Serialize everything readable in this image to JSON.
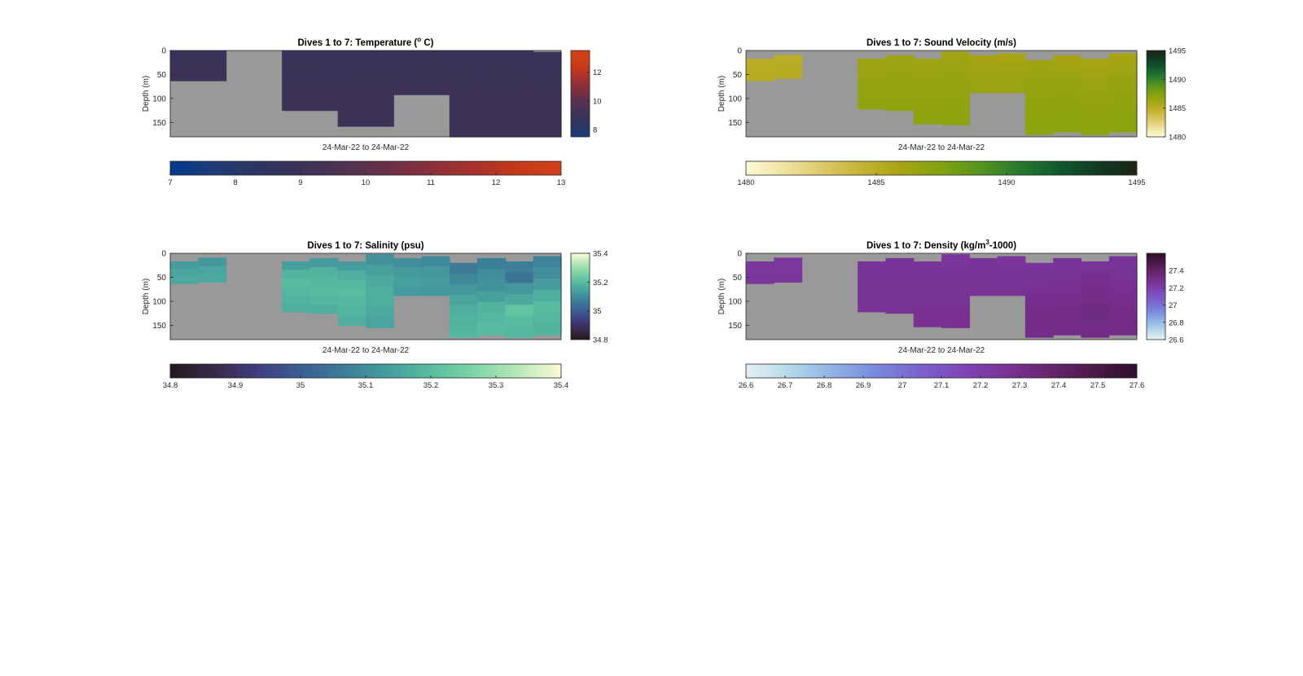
{
  "figure": {
    "background": "#ffffff",
    "nodata_color": "#999999",
    "axis_color": "#262626"
  },
  "chart_data": [
    {
      "type": "heatmap",
      "title_main": "Dives 1 to 7: Temperature (",
      "title_sup": "o",
      "title_tail": " C)",
      "xlabel": "24-Mar-22 to 24-Mar-22",
      "ylabel": "Depth (m)",
      "y_ticks": [
        0,
        50,
        100,
        150
      ],
      "ylim": [
        0,
        180
      ],
      "y_reversed": true,
      "profiles": [
        {
          "bottom": 63,
          "values": [
            8.9,
            9.0,
            9.0,
            9.1,
            9.1,
            9.1,
            9.1
          ]
        },
        {
          "bottom": 63,
          "values": [
            8.9,
            9.0,
            9.0,
            9.1,
            9.1,
            9.1,
            9.1
          ]
        },
        null,
        null,
        {
          "bottom": 125,
          "values": [
            8.95,
            8.95,
            9.0,
            9.0,
            9.05,
            9.05,
            9.1,
            9.1,
            9.1,
            9.1
          ]
        },
        {
          "bottom": 125,
          "values": [
            8.95,
            8.95,
            9.0,
            9.0,
            9.05,
            9.05,
            9.1,
            9.1,
            9.1,
            9.1
          ]
        },
        {
          "bottom": 158,
          "values": [
            8.95,
            8.95,
            9.0,
            9.0,
            9.05,
            9.05,
            9.1,
            9.1,
            9.1,
            9.1,
            9.1,
            9.1
          ]
        },
        {
          "bottom": 158,
          "values": [
            8.95,
            8.95,
            9.0,
            9.0,
            9.05,
            9.05,
            9.1,
            9.1,
            9.1,
            9.1,
            9.1,
            9.1
          ]
        },
        {
          "bottom": 92,
          "values": [
            8.95,
            9.0,
            9.0,
            9.05,
            9.05,
            9.1
          ]
        },
        {
          "bottom": 92,
          "values": [
            8.95,
            9.0,
            9.0,
            9.05,
            9.05,
            9.1
          ]
        },
        {
          "bottom": 180,
          "values": [
            8.95,
            8.95,
            9.0,
            9.0,
            9.05,
            9.05,
            9.1,
            9.1,
            9.1,
            9.1,
            9.1,
            9.1,
            9.1
          ]
        },
        {
          "bottom": 180,
          "values": [
            8.95,
            8.95,
            9.0,
            9.0,
            9.05,
            9.05,
            9.1,
            9.1,
            9.1,
            9.1,
            9.1,
            9.1,
            9.1
          ]
        },
        {
          "bottom": 180,
          "values": [
            8.95,
            8.95,
            9.0,
            9.0,
            9.05,
            9.05,
            9.1,
            9.1,
            9.1,
            9.1,
            9.1,
            9.1,
            9.1
          ]
        },
        {
          "bottom": 180,
          "top": 3,
          "values": [
            8.95,
            8.95,
            9.0,
            9.0,
            9.05,
            9.05,
            9.1,
            9.1,
            9.1,
            9.1,
            9.1,
            9.1,
            9.1
          ]
        }
      ],
      "colorbar_right": {
        "range": [
          7.5,
          13.5
        ],
        "ticks": [
          "8",
          "10",
          "12"
        ]
      },
      "colorbar_bottom": {
        "range": [
          7,
          13
        ],
        "ticks": [
          "7",
          "8",
          "9",
          "10",
          "11",
          "12",
          "13"
        ]
      },
      "colormap": [
        "#003a8c",
        "#1f3b78",
        "#2c3560",
        "#3a3358",
        "#4e3252",
        "#6a2f48",
        "#8a2f3a",
        "#a8322c",
        "#c4391a",
        "#d2401a"
      ]
    },
    {
      "type": "heatmap",
      "title_main": "Dives 1 to 7: Sound Velocity (m/s)",
      "title_sup": "",
      "title_tail": "",
      "xlabel": "24-Mar-22 to 24-Mar-22",
      "ylabel": "Depth (m)",
      "y_ticks": [
        0,
        50,
        100,
        150
      ],
      "ylim": [
        0,
        180
      ],
      "y_reversed": true,
      "profiles": [
        {
          "bottom": 63,
          "top": 17,
          "values": [
            1485.0,
            1485.1,
            1485.2
          ]
        },
        {
          "bottom": 58,
          "top": 9,
          "values": [
            1485.0,
            1485.1,
            1485.2
          ]
        },
        null,
        null,
        {
          "bottom": 122,
          "top": 17,
          "values": [
            1486.4,
            1486.5,
            1486.6,
            1486.7,
            1486.8,
            1486.9
          ]
        },
        {
          "bottom": 125,
          "top": 10,
          "values": [
            1486.3,
            1486.5,
            1486.6,
            1486.7,
            1486.8,
            1486.9
          ]
        },
        {
          "bottom": 153,
          "top": 17,
          "values": [
            1486.3,
            1486.5,
            1486.6,
            1486.7,
            1486.8,
            1486.9,
            1487.0
          ]
        },
        {
          "bottom": 155,
          "top": 2,
          "values": [
            1486.2,
            1486.4,
            1486.6,
            1486.7,
            1486.8,
            1486.9,
            1487.0
          ]
        },
        {
          "bottom": 88,
          "top": 10,
          "values": [
            1486.0,
            1486.2,
            1486.4,
            1486.5
          ]
        },
        {
          "bottom": 88,
          "top": 6,
          "values": [
            1485.9,
            1486.2,
            1486.4,
            1486.5
          ]
        },
        {
          "bottom": 175,
          "top": 20,
          "values": [
            1486.3,
            1486.5,
            1486.7,
            1486.8,
            1486.9,
            1487.0,
            1487.0
          ]
        },
        {
          "bottom": 170,
          "top": 10,
          "values": [
            1486.0,
            1486.3,
            1486.6,
            1486.8,
            1486.9,
            1487.0,
            1487.0
          ]
        },
        {
          "bottom": 175,
          "top": 17,
          "values": [
            1485.9,
            1486.2,
            1486.5,
            1486.7,
            1486.8,
            1486.9,
            1487.0
          ]
        },
        {
          "bottom": 170,
          "top": 6,
          "values": [
            1486.0,
            1486.3,
            1486.6,
            1486.8,
            1486.9,
            1487.0,
            1487.0
          ]
        }
      ],
      "colorbar_right": {
        "range": [
          1480,
          1495
        ],
        "ticks": [
          "1480",
          "1485",
          "1490",
          "1495"
        ]
      },
      "colorbar_bottom": {
        "range": [
          1480,
          1495
        ],
        "ticks": [
          "1480",
          "1485",
          "1490",
          "1495"
        ]
      },
      "colormap": [
        "#fdfbd8",
        "#efe2a0",
        "#dcc766",
        "#c4b231",
        "#a6a413",
        "#82a20e",
        "#55941f",
        "#26792d",
        "#0f5a2e",
        "#113a24",
        "#1b2414"
      ]
    },
    {
      "type": "heatmap",
      "title_main": "Dives 1 to 7: Salinity (psu)",
      "title_sup": "",
      "title_tail": "",
      "xlabel": "24-Mar-22 to 24-Mar-22",
      "ylabel": "Depth (m)",
      "y_ticks": [
        0,
        50,
        100,
        150
      ],
      "ylim": [
        0,
        180
      ],
      "y_reversed": true,
      "profiles": [
        {
          "bottom": 63,
          "top": 17,
          "values": [
            35.13,
            35.15,
            35.16
          ]
        },
        {
          "bottom": 60,
          "top": 9,
          "values": [
            35.12,
            35.15,
            35.16
          ]
        },
        null,
        null,
        {
          "bottom": 122,
          "top": 17,
          "values": [
            35.14,
            35.18,
            35.2,
            35.19,
            35.18,
            35.17
          ]
        },
        {
          "bottom": 125,
          "top": 10,
          "values": [
            35.13,
            35.18,
            35.19,
            35.2,
            35.19,
            35.17
          ]
        },
        {
          "bottom": 150,
          "top": 17,
          "values": [
            35.13,
            35.17,
            35.19,
            35.2,
            35.19,
            35.18,
            35.17
          ]
        },
        {
          "bottom": 155,
          "top": 2,
          "values": [
            35.11,
            35.14,
            35.16,
            35.17,
            35.17,
            35.16,
            35.15
          ]
        },
        {
          "bottom": 88,
          "top": 10,
          "values": [
            35.1,
            35.13,
            35.14,
            35.13
          ]
        },
        {
          "bottom": 88,
          "top": 6,
          "values": [
            35.09,
            35.12,
            35.13,
            35.12
          ]
        },
        {
          "bottom": 175,
          "top": 20,
          "values": [
            35.06,
            35.09,
            35.12,
            35.15,
            35.17,
            35.18,
            35.19
          ]
        },
        {
          "bottom": 170,
          "top": 10,
          "values": [
            35.07,
            35.1,
            35.11,
            35.14,
            35.18,
            35.19,
            35.2
          ]
        },
        {
          "bottom": 175,
          "top": 17,
          "values": [
            35.07,
            35.05,
            35.12,
            35.16,
            35.22,
            35.2,
            35.19
          ]
        },
        {
          "bottom": 170,
          "top": 6,
          "values": [
            35.08,
            35.1,
            35.13,
            35.17,
            35.2,
            35.19,
            35.18
          ]
        }
      ],
      "colorbar_right": {
        "range": [
          34.8,
          35.4
        ],
        "ticks": [
          "34.8",
          "35",
          "35.2",
          "35.4"
        ]
      },
      "colorbar_bottom": {
        "range": [
          34.8,
          35.4
        ],
        "ticks": [
          "34.8",
          "34.9",
          "35",
          "35.1",
          "35.2",
          "35.3",
          "35.4"
        ]
      },
      "colormap": [
        "#24181f",
        "#3a2848",
        "#3f3d80",
        "#3a5e92",
        "#3c7d98",
        "#459d9e",
        "#58bca0",
        "#7ed5a6",
        "#b7e7b8",
        "#fcfad6"
      ]
    },
    {
      "type": "heatmap",
      "title_main": "Dives 1 to 7: Density (kg/m",
      "title_sup": "3",
      "title_tail": "-1000)",
      "xlabel": "24-Mar-22 to 24-Mar-22",
      "ylabel": "Depth (m)",
      "y_ticks": [
        0,
        50,
        100,
        150
      ],
      "ylim": [
        0,
        180
      ],
      "y_reversed": true,
      "profiles": [
        {
          "bottom": 63,
          "top": 17,
          "values": [
            27.24,
            27.24,
            27.25
          ]
        },
        {
          "bottom": 60,
          "top": 9,
          "values": [
            27.24,
            27.24,
            27.25
          ]
        },
        null,
        null,
        {
          "bottom": 122,
          "top": 17,
          "values": [
            27.26,
            27.26,
            27.27,
            27.27,
            27.27,
            27.27
          ]
        },
        {
          "bottom": 125,
          "top": 10,
          "values": [
            27.26,
            27.26,
            27.27,
            27.27,
            27.27,
            27.27
          ]
        },
        {
          "bottom": 153,
          "top": 17,
          "values": [
            27.26,
            27.26,
            27.27,
            27.27,
            27.27,
            27.28,
            27.28
          ]
        },
        {
          "bottom": 155,
          "top": 2,
          "values": [
            27.25,
            27.26,
            27.27,
            27.27,
            27.27,
            27.28,
            27.28
          ]
        },
        {
          "bottom": 88,
          "top": 10,
          "values": [
            27.26,
            27.26,
            27.27,
            27.27
          ]
        },
        {
          "bottom": 88,
          "top": 6,
          "values": [
            27.25,
            27.26,
            27.26,
            27.27
          ]
        },
        {
          "bottom": 175,
          "top": 20,
          "values": [
            27.26,
            27.27,
            27.28,
            27.29,
            27.3,
            27.3,
            27.3
          ]
        },
        {
          "bottom": 170,
          "top": 10,
          "values": [
            27.26,
            27.27,
            27.28,
            27.29,
            27.3,
            27.31,
            27.31
          ]
        },
        {
          "bottom": 175,
          "top": 17,
          "values": [
            27.27,
            27.29,
            27.3,
            27.31,
            27.33,
            27.32,
            27.31
          ]
        },
        {
          "bottom": 170,
          "top": 6,
          "values": [
            27.26,
            27.27,
            27.28,
            27.29,
            27.3,
            27.31,
            27.31
          ]
        }
      ],
      "colorbar_right": {
        "range": [
          26.6,
          27.6
        ],
        "ticks": [
          "26.6",
          "26.8",
          "27",
          "27.2",
          "27.4"
        ]
      },
      "colorbar_bottom": {
        "range": [
          26.6,
          27.6
        ],
        "ticks": [
          "26.6",
          "26.7",
          "26.8",
          "26.9",
          "27",
          "27.1",
          "27.2",
          "27.3",
          "27.4",
          "27.5",
          "27.6"
        ]
      },
      "colormap": [
        "#e6f1f2",
        "#b5d8ea",
        "#8fb3e4",
        "#7a88dc",
        "#7c62cf",
        "#7f45b8",
        "#7a3296",
        "#67256e",
        "#4c1a4a",
        "#2e0f2a"
      ]
    }
  ]
}
